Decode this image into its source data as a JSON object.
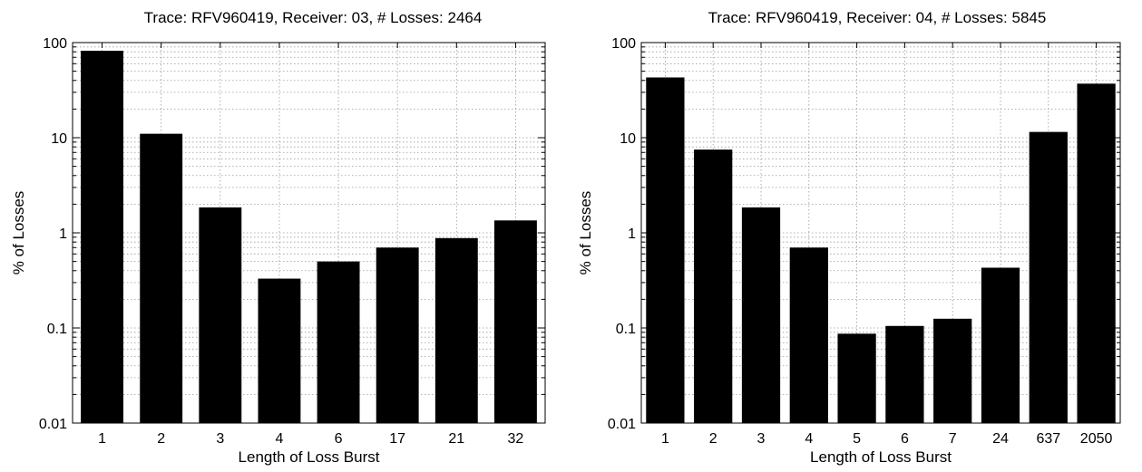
{
  "chart_data": [
    {
      "type": "bar",
      "title": "Trace: RFV960419, Receiver: 03, # Losses: 2464",
      "xlabel": "Length of Loss Burst",
      "ylabel": "% of Losses",
      "y_scale": "log",
      "ylim": [
        0.01,
        100
      ],
      "y_ticks": [
        "0.01",
        "0.1",
        "1",
        "10",
        "100"
      ],
      "grid": true,
      "bar_color": "#000000",
      "categories": [
        "1",
        "2",
        "3",
        "4",
        "6",
        "17",
        "21",
        "32"
      ],
      "values": [
        82,
        11,
        1.85,
        0.33,
        0.5,
        0.7,
        0.88,
        1.35
      ]
    },
    {
      "type": "bar",
      "title": "Trace: RFV960419, Receiver: 04, # Losses: 5845",
      "xlabel": "Length of Loss Burst",
      "ylabel": "% of Losses",
      "y_scale": "log",
      "ylim": [
        0.01,
        100
      ],
      "y_ticks": [
        "0.01",
        "0.1",
        "1",
        "10",
        "100"
      ],
      "grid": true,
      "bar_color": "#000000",
      "categories": [
        "1",
        "2",
        "3",
        "4",
        "5",
        "6",
        "7",
        "24",
        "637",
        "2050"
      ],
      "values": [
        43,
        7.5,
        1.85,
        0.7,
        0.087,
        0.105,
        0.125,
        0.43,
        11.5,
        37
      ]
    }
  ]
}
